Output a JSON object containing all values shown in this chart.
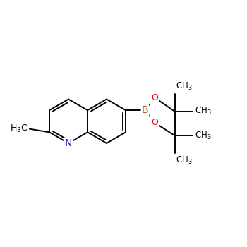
{
  "bg_color": "#ffffff",
  "bond_color": "#000000",
  "N_color": "#0000cc",
  "B_color": "#b05a2f",
  "O_color": "#ff0000",
  "line_width": 1.4,
  "font_size": 9,
  "BL": 0.48,
  "pc_x": -1.05,
  "pc_y": 0.05,
  "xlim": [
    -2.5,
    2.8
  ],
  "ylim": [
    -1.6,
    1.6
  ]
}
